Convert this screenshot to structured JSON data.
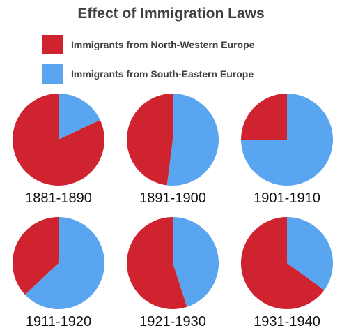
{
  "chart_data": {
    "type": "pie",
    "title": "Effect of Immigration Laws",
    "legend": [
      {
        "name": "Immigrants from North-Western Europe",
        "color": "#cf2330"
      },
      {
        "name": "Immigrants from South-Eastern Europe",
        "color": "#5aa5ef"
      }
    ],
    "series_names": [
      "Immigrants from North-Western Europe",
      "Immigrants from South-Eastern Europe"
    ],
    "pies": [
      {
        "label": "1881-1890",
        "values": [
          82,
          18
        ]
      },
      {
        "label": "1891-1900",
        "values": [
          48,
          52
        ]
      },
      {
        "label": "1901-1910",
        "values": [
          25,
          75
        ]
      },
      {
        "label": "1911-1920",
        "values": [
          37,
          63
        ]
      },
      {
        "label": "1921-1930",
        "values": [
          55,
          45
        ]
      },
      {
        "label": "1931-1940",
        "values": [
          65,
          35
        ]
      }
    ]
  }
}
